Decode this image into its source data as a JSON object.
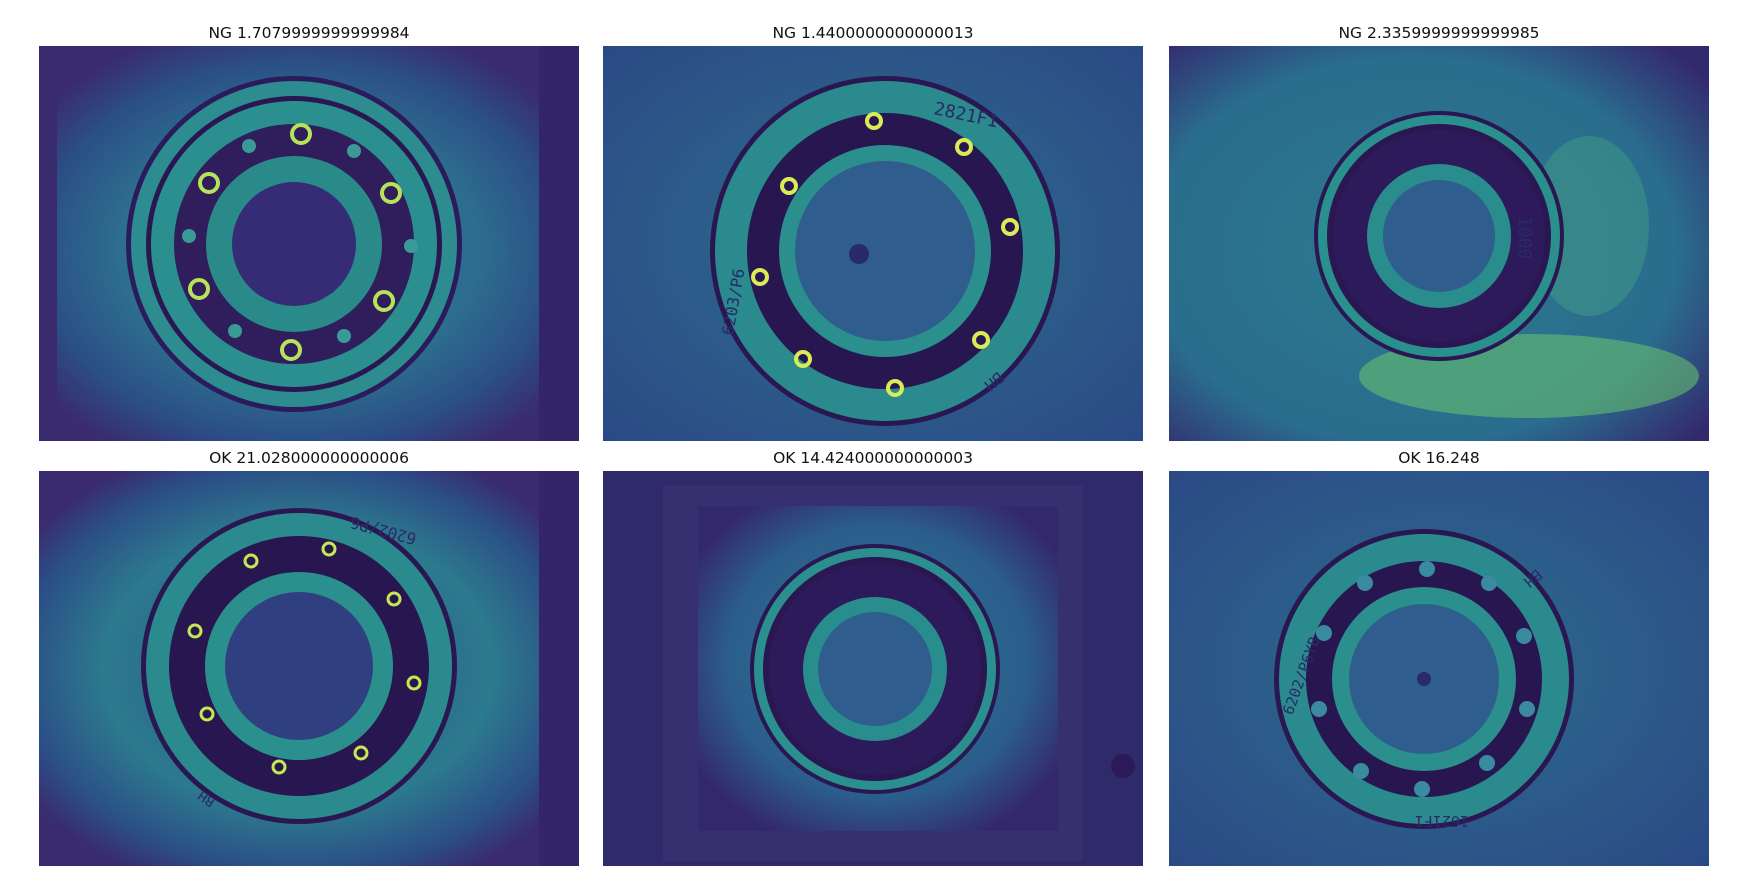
{
  "panels": [
    {
      "title": "NG 1.7079999999999984",
      "status": "NG",
      "score": 1.7079999999999984,
      "engraving": ""
    },
    {
      "title": "NG 1.4400000000000013",
      "status": "NG",
      "score": 1.4400000000000013,
      "engraving_top": "2821F1",
      "engraving_left": "6203/P6",
      "engraving_right": "BH"
    },
    {
      "title": "NG 2.3359999999999985",
      "status": "NG",
      "score": 2.3359999999999985,
      "engraving_right": "1000"
    },
    {
      "title": "OK 21.028000000000006",
      "status": "OK",
      "score": 21.028000000000006,
      "engraving_top": "6202/P6",
      "engraving_left": "BH"
    },
    {
      "title": "OK 14.424000000000003",
      "status": "OK",
      "score": 14.424000000000003
    },
    {
      "title": "OK 16.248",
      "status": "OK",
      "score": 16.248,
      "engraving_left": "6202/P6YB",
      "engraving_right": "BH",
      "engraving_bottom": "1621F1"
    }
  ],
  "colors": {
    "bg_dark": "#3b2a6e",
    "bg_mid": "#2f5b8c",
    "teal": "#2a9d8f",
    "glow": "#b7e04a",
    "dark": "#2b0f4d"
  }
}
